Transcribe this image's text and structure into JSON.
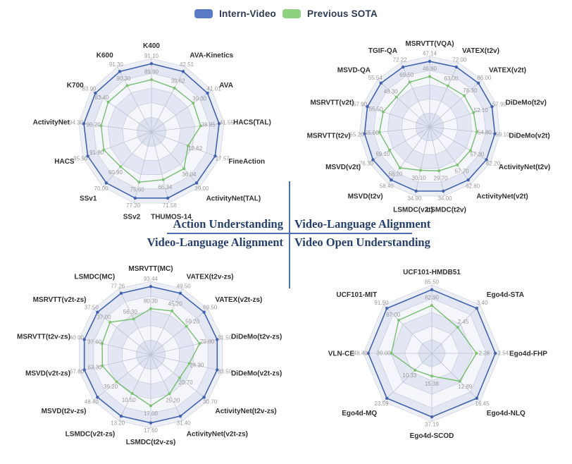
{
  "legend": {
    "items": [
      {
        "label": "Intern-Video",
        "color": "#5b7ac4"
      },
      {
        "label": "Previous SOTA",
        "color": "#8ed17f"
      }
    ]
  },
  "divider": {
    "top_left_label": "Action Understanding",
    "top_right_label": "Video-Language Alignment",
    "bottom_left_label": "Video-Language Alignment",
    "bottom_right_label": "Video Open Understanding",
    "line_color": "#4f6db3"
  },
  "colors": {
    "intern_video_line": "#4263ad",
    "previous_sota_line": "#7cc46e",
    "grid_band": "#edeff7",
    "grid_stroke": "#d4d6df",
    "value_label": "#999999"
  },
  "chart_data": [
    {
      "type": "radar",
      "section": "Action Understanding",
      "quadrant": "top-left",
      "legend_position": "top-center",
      "grid_levels": 5,
      "axes_independently_scaled": true,
      "categories": [
        "K400",
        "AVA-Kinetics",
        "AVA",
        "HACS(TAL)",
        "FineAction",
        "ActivityNet(TAL)",
        "THUMOS-14",
        "SSv2",
        "SSv1",
        "HACS",
        "ActivityNet",
        "K700",
        "K600"
      ],
      "series": [
        {
          "name": "Intern-Video",
          "color": "#4263ad",
          "values": [
            91.1,
            42.51,
            41.01,
            41.55,
            17.57,
            39.0,
            71.58,
            77.2,
            70.0,
            95.5,
            94.3,
            83.9,
            91.3
          ],
          "labels": [
            "91.10",
            "42.51",
            "41.01",
            "41.55",
            "17.57",
            "39.00",
            "71.58",
            "77.20",
            "70.00",
            "95.50",
            "94.30",
            "83.90",
            "91.30"
          ]
        },
        {
          "name": "Previous SOTA",
          "color": "#7cc46e",
          "values": [
            89.9,
            39.62,
            39.3,
            38.85,
            12.62,
            36.04,
            66.34,
            75.6,
            60.9,
            91.9,
            90.2,
            83.4,
            90.3
          ],
          "labels": [
            "89.90",
            "39.62",
            "39.30",
            "38.85",
            "12.62",
            "36.04",
            "66.34",
            "75.60",
            "60.90",
            "91.90",
            "90.20",
            "83.40",
            "90.30"
          ]
        }
      ]
    },
    {
      "type": "radar",
      "section": "Video-Language Alignment",
      "quadrant": "top-right",
      "legend_position": "top-center",
      "grid_levels": 5,
      "axes_independently_scaled": true,
      "categories": [
        "MSRVTT(VQA)",
        "VATEX(t2v)",
        "VATEX(v2t)",
        "DiDeMo(t2v)",
        "DiDeMo(v2t)",
        "ActivityNet(t2v)",
        "ActivityNet(v2t)",
        "LSMDC(t2v)",
        "LSMDC(v2t)",
        "MSVD(t2v)",
        "MSVD(v2t)",
        "MSRVTT(t2v)",
        "MSRVTT(v2t)",
        "MSVD-QA",
        "TGIF-QA"
      ],
      "series": [
        {
          "name": "Intern-Video",
          "color": "#4263ad",
          "values": [
            47.14,
            72.0,
            86.0,
            57.9,
            59.1,
            62.2,
            62.8,
            34.0,
            34.9,
            58.4,
            76.3,
            55.2,
            57.9,
            55.54,
            72.22
          ],
          "labels": [
            "47.14",
            "72.00",
            "86.00",
            "57.90",
            "59.10",
            "62.20",
            "62.80",
            "34.00",
            "34.90",
            "58.40",
            "76.30",
            "55.20",
            "57.90",
            "55.54",
            "72.22"
          ]
        },
        {
          "name": "Previous SOTA",
          "color": "#7cc46e",
          "values": [
            46.8,
            63.0,
            78.3,
            52.1,
            54.8,
            57.3,
            57.7,
            29.7,
            30.1,
            58.2,
            69.1,
            55.0,
            55.5,
            48.3,
            69.5
          ],
          "labels": [
            "46.80",
            "63.00",
            "78.30",
            "52.10",
            "54.80",
            "57.30",
            "57.70",
            "29.70",
            "30.10",
            "58.20",
            "69.10",
            "55.00",
            "55.50",
            "48.30",
            "69.50"
          ]
        }
      ]
    },
    {
      "type": "radar",
      "section": "Video-Language Alignment",
      "quadrant": "bottom-left",
      "legend_position": "top-center",
      "grid_levels": 5,
      "axes_independently_scaled": true,
      "categories": [
        "MSRVTT(MC)",
        "VATEX(t2v-zs)",
        "VATEX(v2t-zs)",
        "DiDeMo(t2v-zs)",
        "DiDeMo(v2t-zs)",
        "ActivityNet(t2v-zs)",
        "ActivityNet(v2t-zs)",
        "LSMDC(t2v-zs)",
        "LSMDC(v2t-zs)",
        "MSVD(t2v-zs)",
        "MSVD(v2t-zs)",
        "MSRVTT(t2v-zs)",
        "MSRVTT(v2t-zs)",
        "LSMDC(MC)"
      ],
      "series": [
        {
          "name": "Intern-Video",
          "color": "#4263ad",
          "values": [
            93.44,
            49.5,
            69.5,
            31.5,
            33.5,
            30.7,
            31.4,
            17.6,
            13.2,
            48.4,
            67.6,
            40.0,
            37.5,
            77.26
          ],
          "labels": [
            "93.44",
            "49.50",
            "69.50",
            "31.50",
            "33.50",
            "30.70",
            "31.40",
            "17.60",
            "13.20",
            "48.40",
            "67.60",
            "40.00",
            "37.50",
            "77.26"
          ]
        },
        {
          "name": "Previous SOTA",
          "color": "#7cc46e",
          "values": [
            80.3,
            45.2,
            59.2,
            29.8,
            24.3,
            20.7,
            25.2,
            17.0,
            10.5,
            39.2,
            63.3,
            37.6,
            37.0,
            56.3
          ],
          "labels": [
            "80.30",
            "45.20",
            "59.20",
            "29.80",
            "24.30",
            "20.70",
            "25.20",
            "17.00",
            "10.50",
            "39.20",
            "63.30",
            "37.60",
            "37.00",
            "56.30"
          ]
        }
      ]
    },
    {
      "type": "radar",
      "section": "Video Open Understanding",
      "quadrant": "bottom-right",
      "legend_position": "top-center",
      "grid_levels": 5,
      "axes_independently_scaled": true,
      "categories": [
        "UCF101-HMDB51",
        "Ego4d-STA",
        "Ego4d-FHP",
        "Ego4d-NLQ",
        "Ego4d-SCOD",
        "Ego4d-MQ",
        "VLN-CE",
        "UCF101-MIT"
      ],
      "series": [
        {
          "name": "Intern-Video",
          "color": "#4263ad",
          "values": [
            85.5,
            3.4,
            2.54,
            16.45,
            37.19,
            23.59,
            48.4,
            91.9
          ],
          "labels": [
            "85.50",
            "3.40",
            "2.54",
            "16.45",
            "37.19",
            "23.59",
            "48.40",
            "91.90"
          ]
        },
        {
          "name": "Previous SOTA",
          "color": "#7cc46e",
          "values": [
            82.9,
            2.45,
            2.28,
            12.89,
            15.38,
            10.33,
            39.0,
            87.0
          ],
          "labels": [
            "82.90",
            "2.45",
            "2.28",
            "12.89",
            "15.38",
            "10.33",
            "39.00",
            "87.00"
          ]
        }
      ]
    }
  ]
}
